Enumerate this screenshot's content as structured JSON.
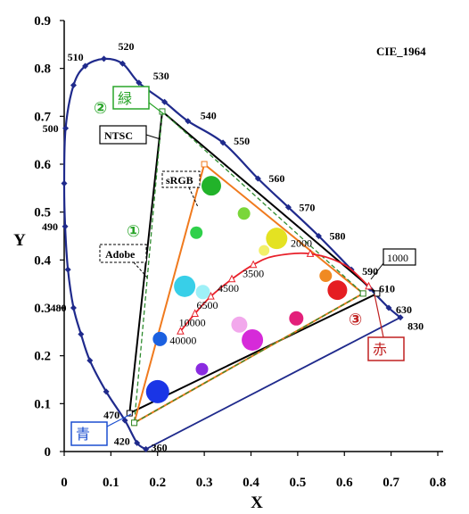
{
  "chart_data": {
    "type": "scatter",
    "title": "CIE_1964",
    "xlabel": "X",
    "ylabel": "Y",
    "xlim": [
      0,
      0.8
    ],
    "ylim": [
      0,
      0.9
    ],
    "x_ticks": [
      "0",
      "0.1",
      "0.2",
      "0.3",
      "0.4",
      "0.5",
      "0.6",
      "0.7",
      "0.8"
    ],
    "y_ticks": [
      "0",
      "0.1",
      "0.2",
      "0.3",
      "0.4",
      "0.5",
      "0.6",
      "0.7",
      "0.8",
      "0.9"
    ],
    "grid": false,
    "spectral_locus": {
      "color": "#1f2a8c",
      "points": [
        {
          "x": 0.175,
          "y": 0.005,
          "label": "360"
        },
        {
          "x": 0.156,
          "y": 0.018,
          "label": "420"
        },
        {
          "x": 0.13,
          "y": 0.065,
          "label": "470"
        },
        {
          "x": 0.09,
          "y": 0.125
        },
        {
          "x": 0.055,
          "y": 0.19
        },
        {
          "x": 0.036,
          "y": 0.245
        },
        {
          "x": 0.02,
          "y": 0.3,
          "label": "480"
        },
        {
          "x": 0.008,
          "y": 0.38
        },
        {
          "x": 0.002,
          "y": 0.47,
          "label": "490"
        },
        {
          "x": 0.0,
          "y": 0.56
        },
        {
          "x": 0.003,
          "y": 0.675,
          "label": "500"
        },
        {
          "x": 0.02,
          "y": 0.765
        },
        {
          "x": 0.045,
          "y": 0.805,
          "label": "510"
        },
        {
          "x": 0.085,
          "y": 0.82,
          "label": "520"
        },
        {
          "x": 0.125,
          "y": 0.81
        },
        {
          "x": 0.16,
          "y": 0.77,
          "label": "530"
        },
        {
          "x": 0.215,
          "y": 0.73
        },
        {
          "x": 0.265,
          "y": 0.69,
          "label": "540"
        },
        {
          "x": 0.34,
          "y": 0.645,
          "label": "550"
        },
        {
          "x": 0.415,
          "y": 0.57,
          "label": "560"
        },
        {
          "x": 0.48,
          "y": 0.51,
          "label": "570"
        },
        {
          "x": 0.545,
          "y": 0.45,
          "label": "580"
        },
        {
          "x": 0.615,
          "y": 0.38,
          "label": "590"
        },
        {
          "x": 0.655,
          "y": 0.34,
          "label": "610"
        },
        {
          "x": 0.695,
          "y": 0.3,
          "label": "630"
        },
        {
          "x": 0.72,
          "y": 0.28,
          "label": "830"
        }
      ],
      "purple_line": [
        {
          "x": 0.72,
          "y": 0.28
        },
        {
          "x": 0.175,
          "y": 0.005
        }
      ]
    },
    "gamuts": [
      {
        "name": "NTSC",
        "color": "#000000",
        "dash": false,
        "points": [
          {
            "x": 0.21,
            "y": 0.71
          },
          {
            "x": 0.67,
            "y": 0.33
          },
          {
            "x": 0.14,
            "y": 0.08
          }
        ]
      },
      {
        "name": "sRGB",
        "color": "#f07a1e",
        "dash": false,
        "points": [
          {
            "x": 0.3,
            "y": 0.6
          },
          {
            "x": 0.64,
            "y": 0.33
          },
          {
            "x": 0.15,
            "y": 0.06
          }
        ]
      },
      {
        "name": "Adobe",
        "color": "#2e8b2e",
        "dash": true,
        "points": [
          {
            "x": 0.21,
            "y": 0.71
          },
          {
            "x": 0.64,
            "y": 0.33
          },
          {
            "x": 0.15,
            "y": 0.06
          }
        ]
      }
    ],
    "blackbody_locus": {
      "color": "#e8202a",
      "points": [
        {
          "x": 0.652,
          "y": 0.345,
          "label": "1000"
        },
        {
          "x": 0.6,
          "y": 0.39
        },
        {
          "x": 0.527,
          "y": 0.413,
          "label": "2000"
        },
        {
          "x": 0.45,
          "y": 0.408
        },
        {
          "x": 0.405,
          "y": 0.39,
          "label": "3500"
        },
        {
          "x": 0.359,
          "y": 0.36,
          "label": "4500"
        },
        {
          "x": 0.314,
          "y": 0.324,
          "label": "6500"
        },
        {
          "x": 0.28,
          "y": 0.288,
          "label": "10000"
        },
        {
          "x": 0.249,
          "y": 0.251,
          "label": "40000"
        }
      ]
    },
    "color_samples": [
      {
        "x": 0.315,
        "y": 0.555,
        "r": 11,
        "color": "#22b32a"
      },
      {
        "x": 0.385,
        "y": 0.497,
        "r": 7,
        "color": "#7ad63a"
      },
      {
        "x": 0.283,
        "y": 0.457,
        "r": 7,
        "color": "#2fd04a"
      },
      {
        "x": 0.455,
        "y": 0.445,
        "r": 12,
        "color": "#e4e222"
      },
      {
        "x": 0.428,
        "y": 0.42,
        "r": 6,
        "color": "#f2ef6a"
      },
      {
        "x": 0.56,
        "y": 0.367,
        "r": 7,
        "color": "#f08a22"
      },
      {
        "x": 0.585,
        "y": 0.337,
        "r": 11,
        "color": "#e51d22"
      },
      {
        "x": 0.258,
        "y": 0.345,
        "r": 12,
        "color": "#38cfe8"
      },
      {
        "x": 0.297,
        "y": 0.333,
        "r": 8,
        "color": "#9ef0f7"
      },
      {
        "x": 0.205,
        "y": 0.235,
        "r": 8,
        "color": "#1b60e0"
      },
      {
        "x": 0.375,
        "y": 0.265,
        "r": 9,
        "color": "#f2a8ec"
      },
      {
        "x": 0.497,
        "y": 0.278,
        "r": 8,
        "color": "#e3207a"
      },
      {
        "x": 0.403,
        "y": 0.233,
        "r": 12,
        "color": "#d62ad9"
      },
      {
        "x": 0.295,
        "y": 0.172,
        "r": 7,
        "color": "#8a2be0"
      },
      {
        "x": 0.2,
        "y": 0.125,
        "r": 13,
        "color": "#1a35e6"
      }
    ]
  },
  "labels": {
    "cie": "CIE_1964",
    "ntsc": "NTSC",
    "srgb": "sRGB",
    "adobe": "Adobe",
    "green_kanji": "緑",
    "blue_kanji": "青",
    "red_kanji": "赤",
    "c1": "①",
    "c2": "②",
    "c3": "③",
    "t1000": "1000"
  }
}
